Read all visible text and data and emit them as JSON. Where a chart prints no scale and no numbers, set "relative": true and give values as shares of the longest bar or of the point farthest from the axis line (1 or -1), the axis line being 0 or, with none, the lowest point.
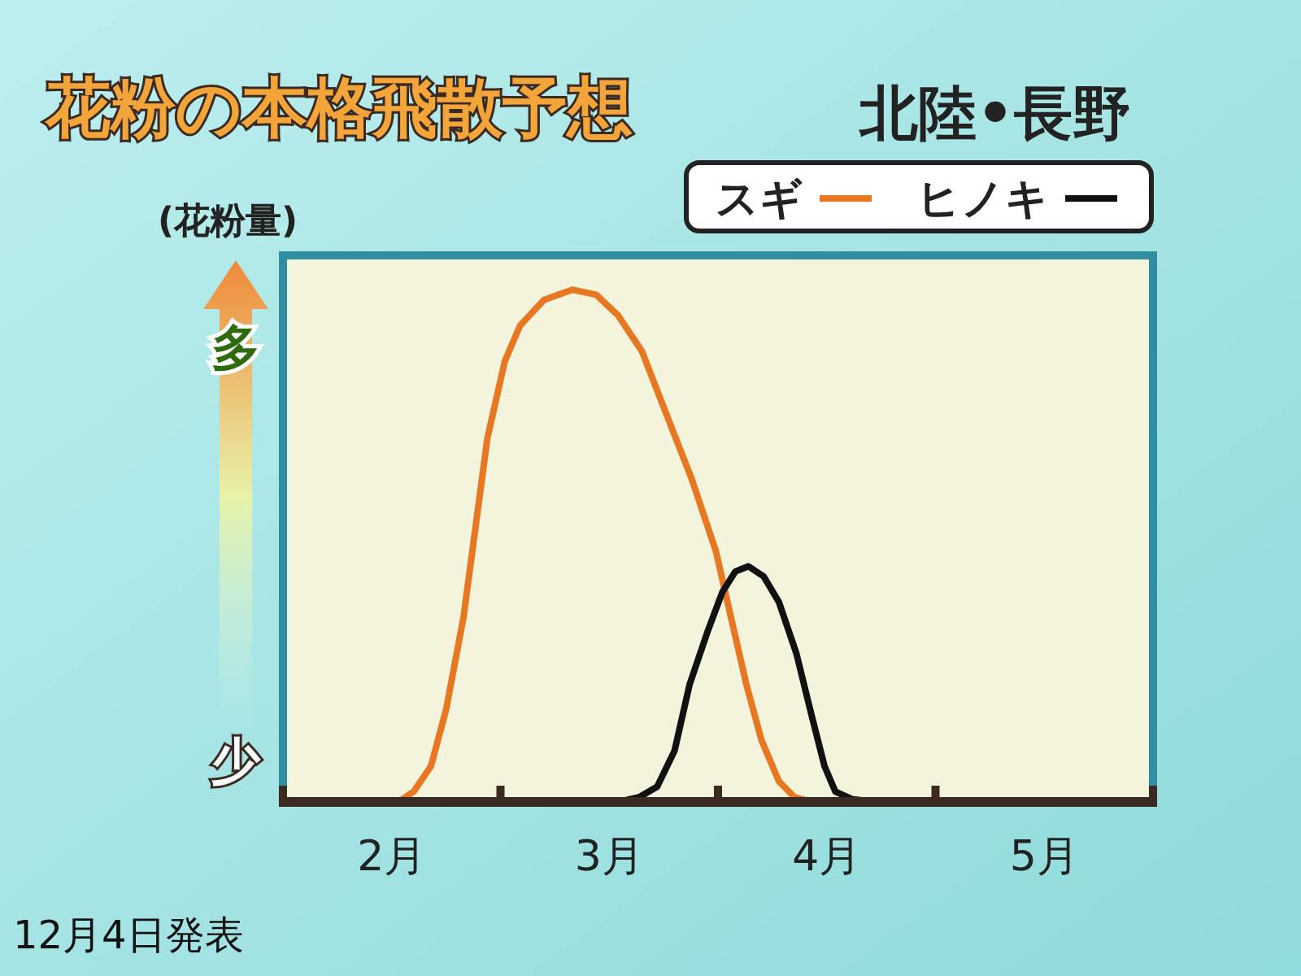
{
  "chart_data": {
    "type": "line",
    "title": "花粉の本格飛散予想",
    "subtitle": "北陸•長野",
    "ylabel": "(花粉量)",
    "relative": true,
    "legend": "top right",
    "xlim": [
      2,
      6
    ],
    "xticks": [
      {
        "value": 2,
        "label": null
      },
      {
        "value": 2.5,
        "label": "2月"
      },
      {
        "value": 3,
        "label": null
      },
      {
        "value": 3.5,
        "label": "3月"
      },
      {
        "value": 4,
        "label": null
      },
      {
        "value": 4.5,
        "label": "4月"
      },
      {
        "value": 5,
        "label": null
      },
      {
        "value": 5.5,
        "label": "5月"
      },
      {
        "value": 6,
        "label": null
      }
    ],
    "series": [
      {
        "name": "スギ",
        "color": "#e87722",
        "x": [
          2.53,
          2.6,
          2.68,
          2.75,
          2.83,
          2.94,
          3.02,
          3.09,
          3.2,
          3.33,
          3.44,
          3.54,
          3.65,
          3.76,
          3.88,
          3.99,
          4.06,
          4.13,
          4.2,
          4.28,
          4.35,
          4.43
        ],
        "values": [
          0,
          0.02,
          0.07,
          0.18,
          0.36,
          0.71,
          0.86,
          0.93,
          0.98,
          1.0,
          0.99,
          0.95,
          0.88,
          0.76,
          0.63,
          0.49,
          0.36,
          0.23,
          0.12,
          0.04,
          0.01,
          0
        ]
      },
      {
        "name": "ヒノキ",
        "color": "#111111",
        "x": [
          3.54,
          3.64,
          3.72,
          3.8,
          3.87,
          3.95,
          4.02,
          4.08,
          4.14,
          4.21,
          4.28,
          4.36,
          4.43,
          4.49,
          4.54,
          4.62,
          4.73
        ],
        "values": [
          0,
          0.01,
          0.03,
          0.1,
          0.23,
          0.33,
          0.41,
          0.45,
          0.46,
          0.44,
          0.39,
          0.29,
          0.17,
          0.07,
          0.02,
          0.005,
          0
        ]
      }
    ],
    "annotations": [
      "多",
      "少",
      "12月4日発表"
    ]
  }
}
